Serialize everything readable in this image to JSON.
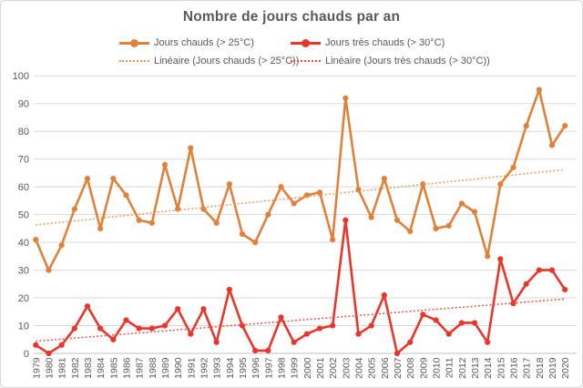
{
  "chart_data": {
    "type": "line",
    "title": "Nombre de jours chauds par an",
    "xlabel": "",
    "ylabel": "",
    "ylim": [
      0,
      100
    ],
    "ytick_step": 10,
    "yticks": [
      0,
      10,
      20,
      30,
      40,
      50,
      60,
      70,
      80,
      90,
      100
    ],
    "grid": true,
    "legend_position": "top",
    "x": [
      "1979",
      "1980",
      "1981",
      "1982",
      "1983",
      "1984",
      "1985",
      "1986",
      "1987",
      "1988",
      "1989",
      "1990",
      "1991",
      "1992",
      "1993",
      "1994",
      "1995",
      "1996",
      "1997",
      "1998",
      "1999",
      "2000",
      "2001",
      "2002",
      "2003",
      "2004",
      "2005",
      "2006",
      "2007",
      "2008",
      "2009",
      "2010",
      "2011",
      "2012",
      "2013",
      "2014",
      "2015",
      "2016",
      "2017",
      "2018",
      "2019",
      "2020"
    ],
    "series": [
      {
        "id": "jours-chauds",
        "name": "Jours chauds (> 25°C)",
        "color": "#e0813a",
        "values": [
          41,
          30,
          39,
          52,
          63,
          45,
          63,
          57,
          48,
          47,
          68,
          52,
          74,
          52,
          47,
          61,
          43,
          40,
          50,
          60,
          54,
          57,
          58,
          41,
          92,
          59,
          49,
          63,
          48,
          44,
          61,
          45,
          46,
          54,
          51,
          35,
          61,
          67,
          82,
          95,
          75,
          82
        ]
      },
      {
        "id": "jours-tres-chauds",
        "name": "Jours très chauds (> 30°C)",
        "color": "#e9362a",
        "values": [
          3,
          0,
          3,
          9,
          17,
          9,
          5,
          12,
          9,
          9,
          10,
          16,
          7,
          16,
          4,
          23,
          10,
          1,
          1,
          13,
          4,
          7,
          9,
          10,
          48,
          7,
          10,
          21,
          0,
          4,
          14,
          12,
          7,
          11,
          11,
          4,
          34,
          18,
          25,
          30,
          30,
          23
        ]
      }
    ],
    "trendlines": [
      {
        "id": "lineaire-jours-chauds",
        "name": "Linéaire (Jours chauds (> 25°C))",
        "color": "#ed9253",
        "start": 46.3,
        "end": 66.2
      },
      {
        "id": "lineaire-jours-tres-chauds",
        "name": "Linéaire (Jours très chauds (> 30°C))",
        "color": "#ef463a",
        "start": 4.4,
        "end": 19.6
      }
    ]
  },
  "legend": {
    "items": [
      {
        "label": "Jours chauds (> 25°C)",
        "color": "#e0813a",
        "variant": "solid"
      },
      {
        "label": "Jours très chauds (> 30°C)",
        "color": "#e9362a",
        "variant": "solid"
      },
      {
        "label": "Linéaire (Jours chauds (> 25°C))",
        "color": "#ed9253",
        "variant": "dotted"
      },
      {
        "label": "Linéaire (Jours très chauds (> 30°C))",
        "color": "#ef463a",
        "variant": "dotted"
      }
    ]
  },
  "colors": {
    "accent_orange": "#e0813a",
    "accent_red": "#e9362a",
    "text": "#595959",
    "grid": "#d9d9d9",
    "axis": "#bfbfbf",
    "background": "#ffffff"
  }
}
